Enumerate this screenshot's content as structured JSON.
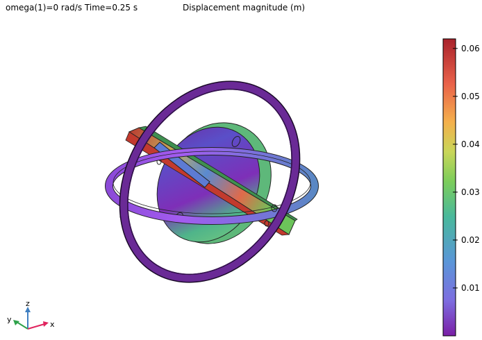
{
  "header": {
    "left_title": "omega(1)=0 rad/s Time=0.25 s",
    "right_title": "Displacement magnitude (m)"
  },
  "colorbar": {
    "ticks": [
      "0.06",
      "0.05",
      "0.04",
      "0.03",
      "0.02",
      "0.01"
    ],
    "tick_values": [
      0.06,
      0.05,
      0.04,
      0.03,
      0.02,
      0.01
    ],
    "range": [
      0.0,
      0.062
    ],
    "colormap": "Prism",
    "colors": [
      "#7a1fa6",
      "#7d6ee0",
      "#5a96d8",
      "#49b89c",
      "#7ccd5b",
      "#c9d659",
      "#f4b04c",
      "#e9614a",
      "#a8222b"
    ]
  },
  "axis_triad": {
    "z_label": "z",
    "y_label": "y",
    "x_label": "x",
    "z_color": "#3f7fc1",
    "y_color": "#2fa24b",
    "x_color": "#e0245e"
  }
}
